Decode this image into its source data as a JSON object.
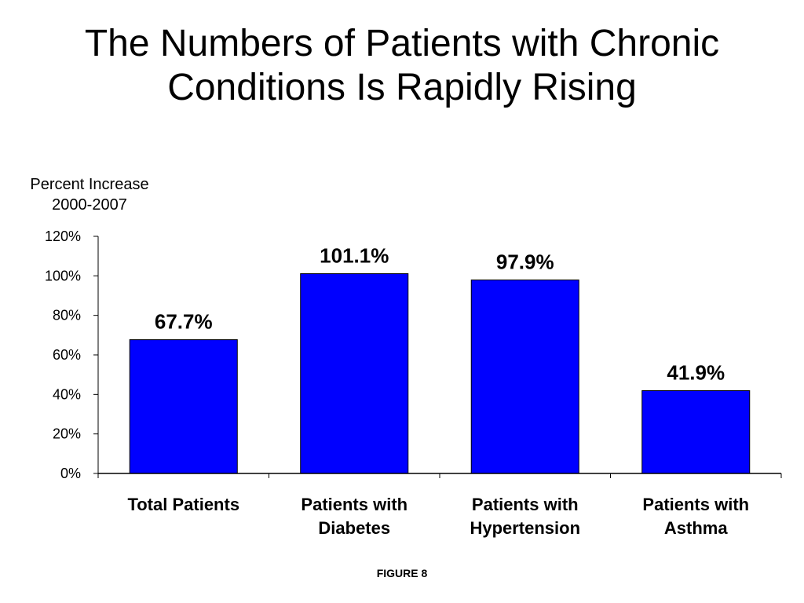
{
  "slide": {
    "title_lines": [
      "The Numbers of Patients with Chronic",
      "Conditions Is Rapidly Rising"
    ],
    "figure_caption": "FIGURE 8"
  },
  "chart_data": {
    "type": "bar",
    "title": "The Numbers of Patients with Chronic Conditions Is Rapidly Rising",
    "ylabel_lines": [
      "Percent Increase",
      "2000-2007"
    ],
    "xlabel": "",
    "categories": [
      [
        "Total Patients"
      ],
      [
        "Patients with",
        "Diabetes"
      ],
      [
        "Patients with",
        "Hypertension"
      ],
      [
        "Patients with",
        "Asthma"
      ]
    ],
    "values": [
      67.7,
      101.1,
      97.9,
      41.9
    ],
    "data_labels": [
      "67.7%",
      "101.1%",
      "97.9%",
      "41.9%"
    ],
    "ylim": [
      0,
      120
    ],
    "yticks": [
      0,
      20,
      40,
      60,
      80,
      100,
      120
    ],
    "ytick_labels": [
      "0%",
      "20%",
      "40%",
      "60%",
      "80%",
      "100%",
      "120%"
    ],
    "grid": false,
    "legend": "none",
    "colors": {
      "bar_fill": "#0000FF",
      "bar_stroke": "#000000",
      "axis": "#000000"
    }
  }
}
